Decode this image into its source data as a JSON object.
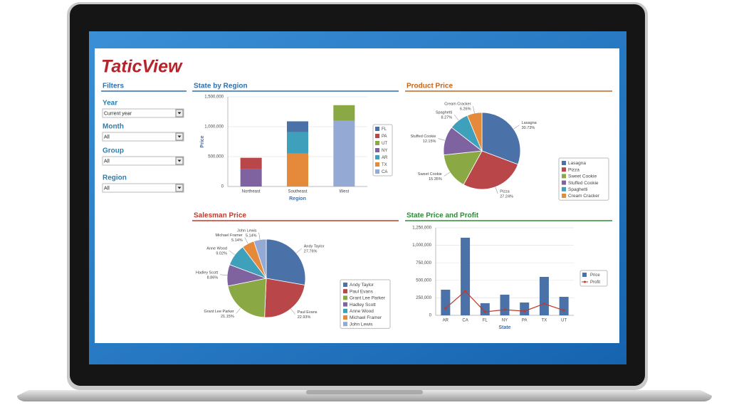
{
  "logo": "TaticView",
  "filters": {
    "title": "Filters",
    "groups": [
      {
        "label": "Year",
        "value": "Current year"
      },
      {
        "label": "Month",
        "value": "All"
      },
      {
        "label": "Group",
        "value": "All"
      },
      {
        "label": "Region",
        "value": "All"
      }
    ]
  },
  "chart_data": [
    {
      "type": "stacked_bar",
      "title": "State by Region",
      "title_color": "#2f6fad",
      "x_label": "Region",
      "y_label": "Price",
      "categories": [
        "Northeast",
        "Southeast",
        "West"
      ],
      "series": [
        {
          "name": "FL",
          "color": "#4a72a8",
          "values": [
            null,
            180000,
            null
          ]
        },
        {
          "name": "PA",
          "color": "#b9474a",
          "values": [
            190000,
            null,
            null
          ]
        },
        {
          "name": "UT",
          "color": "#8aa844",
          "values": [
            null,
            null,
            260000
          ]
        },
        {
          "name": "NY",
          "color": "#7f63a0",
          "values": [
            290000,
            null,
            null
          ]
        },
        {
          "name": "AR",
          "color": "#3fa0bb",
          "values": [
            null,
            360000,
            null
          ]
        },
        {
          "name": "TX",
          "color": "#e58a3a",
          "values": [
            null,
            550000,
            null
          ]
        },
        {
          "name": "CA",
          "color": "#94a9d4",
          "values": [
            null,
            null,
            1100000
          ]
        }
      ],
      "ylim": [
        0,
        1500000
      ],
      "yticks": [
        0,
        {
          "value": 500000,
          "label": "500,000"
        },
        {
          "value": 1000000,
          "label": "1,000,000"
        },
        {
          "value": 1500000,
          "label": "1,500,000"
        }
      ],
      "grid": true
    },
    {
      "type": "pie",
      "title": "Product Price",
      "title_color": "#c0661f",
      "categories": [
        "Lasagna",
        "Pizza",
        "Sweet Cookie",
        "Stuffed Cookie",
        "Spaghetti",
        "Cream Cracker"
      ],
      "values": [
        30.73,
        27.24,
        15.35,
        12.15,
        8.27,
        6.26
      ],
      "value_labels": [
        "30.73%",
        "27.24%",
        "15.35%",
        "12.15%",
        "8.27%",
        "6.26%"
      ],
      "colors": [
        "#4a72a8",
        "#b9474a",
        "#8aa844",
        "#7f63a0",
        "#3fa0bb",
        "#e58a3a"
      ]
    },
    {
      "type": "pie",
      "title": "Salesman Price",
      "title_color": "#c0392b",
      "categories": [
        "Andy Taylor",
        "Paul Evans",
        "Grant Lee Parker",
        "Hadley Scott",
        "Anne Wood",
        "Michael Framer",
        "John Lewis"
      ],
      "values": [
        27.76,
        22.93,
        21.15,
        8.86,
        9.02,
        5.14,
        5.14
      ],
      "value_labels": [
        "27.76%",
        "22.93%",
        "21.15%",
        "8.86%",
        "9.02%",
        "5.14%",
        "5.14%"
      ],
      "colors": [
        "#4a72a8",
        "#b9474a",
        "#8aa844",
        "#7f63a0",
        "#3fa0bb",
        "#e58a3a",
        "#94a9d4"
      ]
    },
    {
      "type": "bar_line",
      "title": "State Price and Profit",
      "title_color": "#2e8b3a",
      "x_label": "State",
      "categories": [
        "AR",
        "CA",
        "FL",
        "NY",
        "PA",
        "TX",
        "UT"
      ],
      "series": [
        {
          "name": "Price",
          "kind": "bar",
          "color": "#4a72a8",
          "values": [
            366000,
            1108000,
            173000,
            295000,
            183000,
            549000,
            264000
          ]
        },
        {
          "name": "Profit",
          "kind": "line",
          "color": "#c0392b",
          "values": [
            100000,
            345000,
            50000,
            80000,
            60000,
            165000,
            70000
          ]
        }
      ],
      "ylim": [
        0,
        1250000
      ],
      "yticks": [
        0,
        {
          "value": 250000,
          "label": "250,000"
        },
        {
          "value": 500000,
          "label": "500,000"
        },
        {
          "value": 750000,
          "label": "750,000"
        },
        {
          "value": 1000000,
          "label": "1,000,000"
        },
        {
          "value": 1250000,
          "label": "1,250,000"
        }
      ],
      "grid": true
    }
  ]
}
